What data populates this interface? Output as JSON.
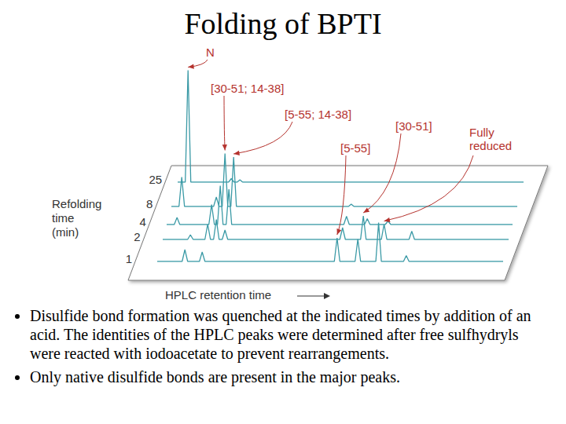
{
  "chart_data": {
    "type": "line",
    "title": "Folding of BPTI",
    "x_label": "HPLC retention time",
    "y_label": "Refolding time (min)",
    "x": [
      0,
      2.2,
      3,
      3.8,
      7.2,
      8,
      8.8,
      12.2,
      13,
      13.8,
      14.7,
      15.5,
      16.3,
      17.2,
      18,
      18.8,
      51.2,
      52,
      52.8,
      57.2,
      58,
      58.8,
      63.2,
      64,
      64.8,
      71.2,
      72,
      72.8,
      100
    ],
    "series": [
      {
        "name": "1",
        "values": [
          0,
          0,
          0,
          0,
          0,
          10,
          0,
          0,
          8,
          0,
          0,
          0,
          0,
          0,
          0,
          0,
          0,
          20,
          0,
          0,
          19,
          0,
          0,
          33,
          0,
          0,
          5,
          0,
          0
        ]
      },
      {
        "name": "2",
        "values": [
          0,
          0,
          0,
          0,
          0,
          4,
          0,
          0,
          13,
          0,
          0,
          17,
          0,
          0,
          8,
          0,
          0,
          10,
          0,
          0,
          20,
          0,
          0,
          13,
          0,
          0,
          7,
          0,
          0
        ]
      },
      {
        "name": "4",
        "values": [
          0,
          0,
          6,
          0,
          0,
          0,
          0,
          0,
          17,
          0,
          0,
          33,
          0,
          0,
          30,
          0,
          0,
          7,
          0,
          0,
          5,
          0,
          0,
          3,
          0,
          0,
          0,
          0,
          0
        ]
      },
      {
        "name": "8",
        "values": [
          0,
          0,
          25,
          0,
          0,
          0,
          0,
          0,
          8,
          0,
          0,
          45,
          0,
          0,
          42,
          0,
          0,
          2,
          0,
          0,
          0,
          0,
          0,
          0,
          0,
          0,
          0,
          0,
          0
        ]
      },
      {
        "name": "25",
        "values": [
          0,
          0,
          95,
          0,
          0,
          0,
          0,
          0,
          0,
          0,
          0,
          3,
          0,
          0,
          2,
          0,
          0,
          0,
          0,
          0,
          0,
          0,
          0,
          0,
          0,
          0,
          0,
          0,
          0
        ]
      }
    ],
    "xlim": [
      0,
      100
    ],
    "ylim": [
      0,
      100
    ],
    "tick_labels": false,
    "grid": false,
    "color": "#3b9aa6",
    "annotations": [
      {
        "text": "N",
        "series": "25",
        "x": 3
      },
      {
        "text": "[30-51; 14-38]",
        "series": "8",
        "x": 15.5
      },
      {
        "text": "[5-55; 14-38]",
        "series": "8",
        "x": 18
      },
      {
        "text": "[30-51]",
        "series": "2",
        "x": 58
      },
      {
        "text": "[5-55]",
        "series": "1",
        "x": 52
      },
      {
        "text": "Fully reduced",
        "series": "2",
        "x": 64
      }
    ]
  },
  "bullets": [
    "Disulfide bond formation was quenched at the indicated times by addition of an acid.  The identities of the HPLC peaks were determined after free sulfhydryls were reacted with iodoacetate to prevent rearrangements.",
    "Only native disulfide bonds are present in the major peaks."
  ]
}
